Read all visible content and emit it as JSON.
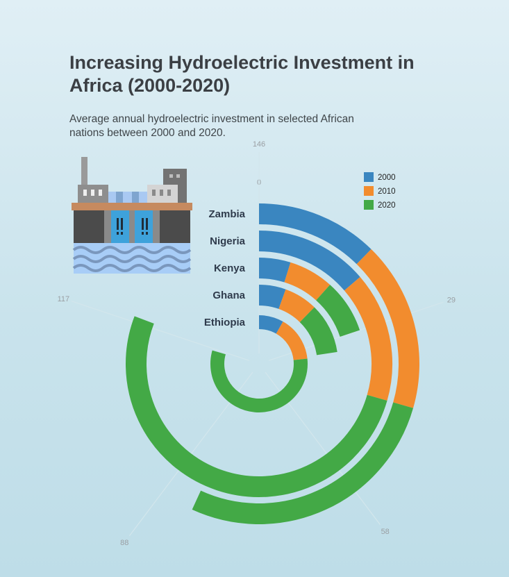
{
  "header": {
    "title": "Increasing Hydroelectric Investment in Africa (2000-2020)",
    "subtitle": "Average annual hydroelectric investment in selected African nations between 2000 and 2020."
  },
  "illustration": {
    "icon": "hydroelectric-dam-icon"
  },
  "colors": {
    "2000": "#3a86c0",
    "2010": "#f28c2e",
    "2020": "#43a946"
  },
  "chart_data": {
    "type": "radial stacked bar",
    "title": "Increasing Hydroelectric Investment in Africa (2000-2020)",
    "subtitle": "Average annual hydroelectric investment in selected African nations between 2000 and 2020.",
    "categories": [
      "Zambia",
      "Nigeria",
      "Kenya",
      "Ghana",
      "Ethiopia"
    ],
    "series": [
      {
        "name": "2000",
        "values": [
          18,
          20,
          7,
          8,
          12
        ]
      },
      {
        "name": "2010",
        "values": [
          25,
          23,
          10,
          10,
          22
        ]
      },
      {
        "name": "2020",
        "values": [
          40,
          75,
          12,
          15,
          82
        ]
      }
    ],
    "axis_ticks": [
      "0",
      "29",
      "58",
      "88",
      "117",
      "146"
    ],
    "axis_range": [
      0,
      146
    ],
    "legend": {
      "position": "top-right",
      "entries": [
        "2000",
        "2010",
        "2020"
      ]
    }
  }
}
